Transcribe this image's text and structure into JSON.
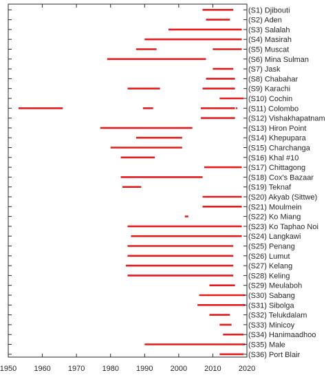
{
  "chart_data": {
    "type": "bar",
    "orientation": "horizontal-ranges",
    "xlim": [
      1950,
      2020
    ],
    "x_ticks": [
      "1950",
      "1960",
      "1970",
      "1980",
      "1990",
      "2000",
      "2010",
      "2020"
    ],
    "grid": false,
    "bar_color": "#e41a1c",
    "stations": [
      {
        "label": "(S1) Djibouti",
        "ranges": [
          [
            2007,
            2016
          ]
        ]
      },
      {
        "label": "(S2) Aden",
        "ranges": [
          [
            2008,
            2015
          ]
        ]
      },
      {
        "label": "(S3) Salalah",
        "ranges": [
          [
            1997,
            2018.5
          ]
        ]
      },
      {
        "label": "(S4) Masirah",
        "ranges": [
          [
            1990,
            2018.5
          ]
        ]
      },
      {
        "label": "(S5) Muscat",
        "ranges": [
          [
            1987.5,
            1993.5
          ],
          [
            2010,
            2018.5
          ]
        ]
      },
      {
        "label": "(S6) Mina Sulman",
        "ranges": [
          [
            1979,
            2008
          ]
        ]
      },
      {
        "label": "(S7) Jask",
        "ranges": [
          [
            2010,
            2016
          ]
        ]
      },
      {
        "label": "(S8) Chabahar",
        "ranges": [
          [
            2008,
            2016.5
          ]
        ]
      },
      {
        "label": "(S9) Karachi",
        "ranges": [
          [
            1985,
            1994.5
          ],
          [
            2007,
            2016.5
          ]
        ]
      },
      {
        "label": "(S10) Cochin",
        "ranges": [
          [
            2012,
            2019
          ]
        ]
      },
      {
        "label": "(S11) Colombo",
        "ranges": [
          [
            1953,
            1966
          ],
          [
            1989.5,
            1992.5
          ],
          [
            2006.5,
            2016.5
          ],
          [
            2016.8,
            2017.2
          ]
        ]
      },
      {
        "label": "(S12) Vishakhapatnam",
        "ranges": [
          [
            2006.5,
            2016.5
          ]
        ]
      },
      {
        "label": "(S13) Hiron Point",
        "ranges": [
          [
            1977,
            2004
          ]
        ]
      },
      {
        "label": "(S14) Khepupara",
        "ranges": [
          [
            1987.5,
            2001
          ]
        ]
      },
      {
        "label": "(S15) Charchanga",
        "ranges": [
          [
            1980,
            2001
          ]
        ]
      },
      {
        "label": "(S16) Khal #10",
        "ranges": [
          [
            1983,
            1993
          ]
        ]
      },
      {
        "label": "(S17) Chittagong",
        "ranges": [
          [
            2007.5,
            2018.5
          ]
        ]
      },
      {
        "label": "(S18) Cox's Bazaar",
        "ranges": [
          [
            1983,
            2007
          ]
        ]
      },
      {
        "label": "(S19) Teknaf",
        "ranges": [
          [
            1983.5,
            1989
          ]
        ]
      },
      {
        "label": "(S20) Akyab (Sittwe)",
        "ranges": [
          [
            2007,
            2018.5
          ]
        ]
      },
      {
        "label": "(S21) Moulmein",
        "ranges": [
          [
            2007,
            2018.5
          ]
        ]
      },
      {
        "label": "(S22) Ko Miang",
        "ranges": [
          [
            2001.8,
            2002.8
          ]
        ]
      },
      {
        "label": "(S23) Ko Taphao Noi",
        "ranges": [
          [
            1985,
            2018.5
          ]
        ]
      },
      {
        "label": "(S24) Langkawi",
        "ranges": [
          [
            1986,
            2018.5
          ]
        ]
      },
      {
        "label": "(S25) Penang",
        "ranges": [
          [
            1985,
            2016
          ]
        ]
      },
      {
        "label": "(S26) Lumut",
        "ranges": [
          [
            1985,
            2016
          ]
        ]
      },
      {
        "label": "(S27) Kelang",
        "ranges": [
          [
            1984.5,
            2016
          ]
        ]
      },
      {
        "label": "(S28) Keling",
        "ranges": [
          [
            1985,
            2016
          ]
        ]
      },
      {
        "label": "(S29) Meulaboh",
        "ranges": [
          [
            2009,
            2016.5
          ]
        ]
      },
      {
        "label": "(S30) Sabang",
        "ranges": [
          [
            2006,
            2019.5
          ]
        ]
      },
      {
        "label": "(S31) Sibolga",
        "ranges": [
          [
            2005.5,
            2019.5
          ]
        ]
      },
      {
        "label": "(S32) Telukdalam",
        "ranges": [
          [
            2009,
            2015
          ]
        ]
      },
      {
        "label": "(S33) Minicoy",
        "ranges": [
          [
            2012,
            2015.5
          ]
        ]
      },
      {
        "label": "(S34) Hanimaadhoo",
        "ranges": [
          [
            2013,
            2019
          ]
        ]
      },
      {
        "label": "(S35) Male",
        "ranges": [
          [
            1990,
            2019.5
          ]
        ]
      },
      {
        "label": "(S36) Port Blair",
        "ranges": [
          [
            2012,
            2019
          ]
        ]
      }
    ]
  }
}
